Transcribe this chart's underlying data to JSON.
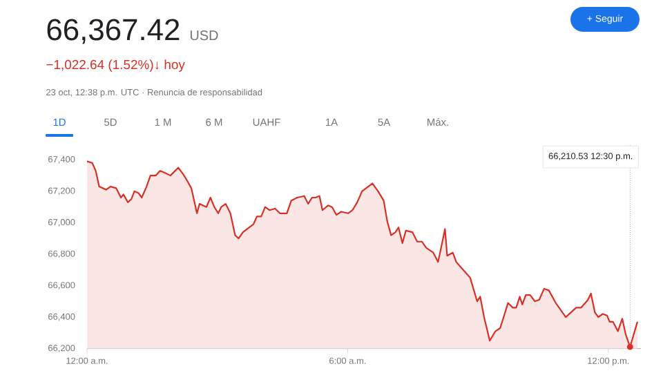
{
  "chart_data": {
    "type": "area",
    "title": "66,367.42",
    "subtitle": "23 oct, 12:38 p.m. UTC · Renuncia de responsabilidad",
    "annotations": [
      "USD",
      "−1,022.64 (1.52%)↓ hoy",
      "+ Seguir",
      "1D",
      "5D",
      "1 M",
      "6 M",
      "UAHF",
      "1A",
      "5A",
      "Máx."
    ],
    "x": [
      0,
      0.12,
      0.2,
      0.28,
      0.44,
      0.54,
      0.67,
      0.78,
      0.84,
      0.94,
      1.02,
      1.09,
      1.18,
      1.26,
      1.37,
      1.46,
      1.58,
      1.68,
      1.77,
      1.92,
      2.1,
      2.21,
      2.3,
      2.4,
      2.45,
      2.53,
      2.59,
      2.67,
      2.75,
      2.84,
      2.93,
      3.02,
      3.09,
      3.19,
      3.3,
      3.41,
      3.49,
      3.59,
      3.73,
      3.83,
      3.91,
      4.01,
      4.1,
      4.2,
      4.33,
      4.44,
      4.6,
      4.7,
      4.84,
      5.0,
      5.09,
      5.18,
      5.26,
      5.35,
      5.42,
      5.55,
      5.64,
      5.74,
      5.85,
      6.01,
      6.11,
      6.22,
      6.33,
      6.57,
      6.7,
      6.83,
      6.91,
      7.0,
      7.1,
      7.17,
      7.26,
      7.34,
      7.49,
      7.6,
      7.71,
      7.81,
      7.97,
      8.08,
      8.15,
      8.24,
      8.29,
      8.42,
      8.5,
      8.66,
      8.82,
      8.98,
      9.05,
      9.14,
      9.27,
      9.4,
      9.51,
      9.59,
      9.69,
      9.8,
      9.88,
      9.96,
      10.02,
      10.1,
      10.2,
      10.31,
      10.41,
      10.52,
      10.63,
      10.79,
      11.02,
      11.26,
      11.37,
      11.47,
      11.53,
      11.6,
      11.69,
      11.77,
      11.87,
      11.97,
      12.03,
      12.11,
      12.22,
      12.32,
      12.4,
      12.5,
      12.67
    ],
    "series": [
      {
        "color": "#d93025",
        "values": [
          67390,
          67380,
          67330,
          67230,
          67210,
          67230,
          67220,
          67160,
          67180,
          67130,
          67150,
          67200,
          67190,
          67160,
          67230,
          67300,
          67300,
          67330,
          67320,
          67300,
          67350,
          67310,
          67270,
          67220,
          67160,
          67060,
          67120,
          67110,
          67100,
          67160,
          67100,
          67060,
          67100,
          67120,
          67060,
          66920,
          66900,
          66940,
          66970,
          66990,
          67040,
          67040,
          67100,
          67080,
          67090,
          67060,
          67060,
          67140,
          67160,
          67170,
          67120,
          67160,
          67160,
          67170,
          67080,
          67110,
          67100,
          67050,
          67070,
          67060,
          67080,
          67130,
          67200,
          67250,
          67200,
          67140,
          67010,
          66920,
          66940,
          66970,
          66870,
          66950,
          66940,
          66880,
          66880,
          66840,
          66810,
          66750,
          66840,
          66960,
          66790,
          66810,
          66750,
          66700,
          66650,
          66500,
          66530,
          66400,
          66250,
          66310,
          66330,
          66400,
          66490,
          66460,
          66460,
          66530,
          66480,
          66540,
          66540,
          66500,
          66510,
          66580,
          66570,
          66490,
          66400,
          66460,
          66460,
          66490,
          66510,
          66550,
          66430,
          66400,
          66420,
          66410,
          66370,
          66370,
          66310,
          66390,
          66290,
          66210.53,
          66370
        ]
      }
    ],
    "xlim": [
      0,
      12.75
    ],
    "xticks": [
      {
        "value": 0,
        "label": "12:00 a.m."
      },
      {
        "value": 6,
        "label": "6:00 a.m."
      },
      {
        "value": 12,
        "label": "12:00 p.m."
      }
    ],
    "ylim": [
      66200,
      67500
    ],
    "yticks": [
      {
        "value": 66200,
        "label": "66,200"
      },
      {
        "value": 66400,
        "label": "66,400"
      },
      {
        "value": 66600,
        "label": "66,600"
      },
      {
        "value": 66800,
        "label": "66,800"
      },
      {
        "value": 67000,
        "label": "67,000"
      },
      {
        "value": 67200,
        "label": "67,200"
      },
      {
        "value": 67400,
        "label": "67,400"
      }
    ],
    "ref_lines": [
      {
        "axis": "x",
        "value": 12.5,
        "label": "66,210.53 12:30 p.m.",
        "color": "#9aa0a6",
        "line_style": "dotted"
      }
    ]
  }
}
